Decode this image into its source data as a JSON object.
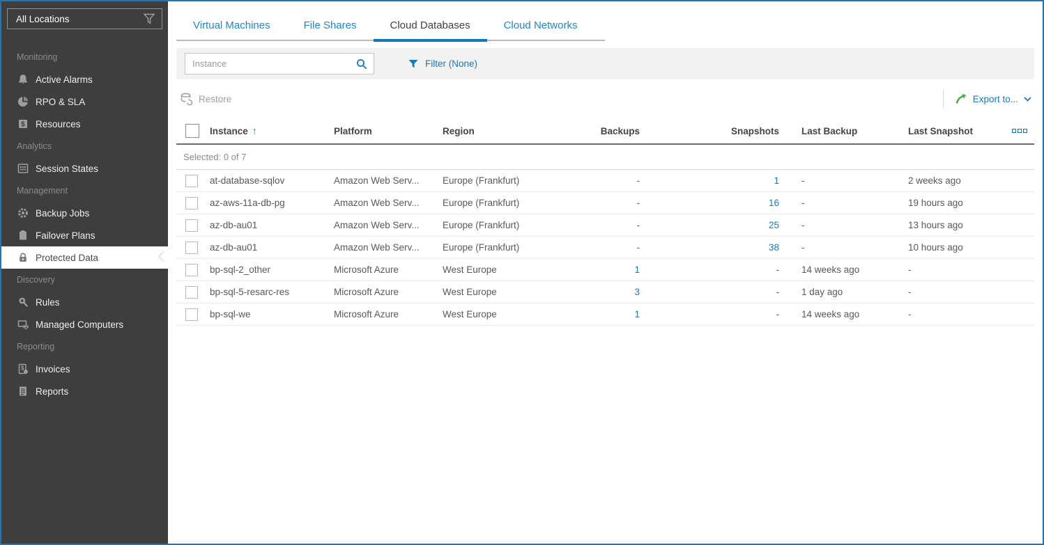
{
  "colors": {
    "accent_blue": "#1779bd",
    "active_tab_underline": "#0f76ba",
    "export_green": "#4caf50",
    "sidebar_bg": "#3e3e3e",
    "frame_border": "#2374b5"
  },
  "sidebar": {
    "location_filter": {
      "value": "All Locations",
      "icon": "funnel-icon"
    },
    "sections": [
      {
        "label": "Monitoring",
        "items": [
          {
            "label": "Active Alarms",
            "icon": "bell"
          },
          {
            "label": "RPO & SLA",
            "icon": "pie"
          },
          {
            "label": "Resources",
            "icon": "dollar"
          }
        ]
      },
      {
        "label": "Analytics",
        "items": [
          {
            "label": "Session States",
            "icon": "grid"
          }
        ]
      },
      {
        "label": "Management",
        "items": [
          {
            "label": "Backup Jobs",
            "icon": "gear"
          },
          {
            "label": "Failover Plans",
            "icon": "clipboard"
          },
          {
            "label": "Protected Data",
            "icon": "lock",
            "selected": true
          }
        ]
      },
      {
        "label": "Discovery",
        "items": [
          {
            "label": "Rules",
            "icon": "search-pin"
          },
          {
            "label": "Managed Computers",
            "icon": "computer-gear"
          }
        ]
      },
      {
        "label": "Reporting",
        "items": [
          {
            "label": "Invoices",
            "icon": "invoice"
          },
          {
            "label": "Reports",
            "icon": "report"
          }
        ]
      }
    ]
  },
  "tabs": [
    {
      "label": "Virtual Machines",
      "active": false
    },
    {
      "label": "File Shares",
      "active": false
    },
    {
      "label": "Cloud Databases",
      "active": true
    },
    {
      "label": "Cloud Networks",
      "active": false
    }
  ],
  "filter_bar": {
    "search_placeholder": "Instance",
    "search_icon": "magnifier-icon",
    "filter_label": "Filter (None)",
    "filter_icon": "funnel-icon"
  },
  "actions": {
    "restore_label": "Restore",
    "restore_icon": "database-restore-icon",
    "export_label": "Export to...",
    "export_icon": "export-arrow-icon"
  },
  "table": {
    "selected_summary": "Selected: 0 of 7",
    "columns": [
      "Instance",
      "Platform",
      "Region",
      "Backups",
      "Snapshots",
      "Last Backup",
      "Last Snapshot"
    ],
    "sort": {
      "column": "Instance",
      "direction": "asc",
      "glyph": "↑"
    },
    "rows": [
      {
        "instance": "at-database-sqlov",
        "platform": "Amazon Web Serv...",
        "region": "Europe (Frankfurt)",
        "backups": "-",
        "snapshots": "1",
        "last_backup": "-",
        "last_snapshot": "2 weeks ago"
      },
      {
        "instance": "az-aws-11a-db-pg",
        "platform": "Amazon Web Serv...",
        "region": "Europe (Frankfurt)",
        "backups": "-",
        "snapshots": "16",
        "last_backup": "-",
        "last_snapshot": "19 hours ago"
      },
      {
        "instance": "az-db-au01",
        "platform": "Amazon Web Serv...",
        "region": "Europe (Frankfurt)",
        "backups": "-",
        "snapshots": "25",
        "last_backup": "-",
        "last_snapshot": "13 hours ago"
      },
      {
        "instance": "az-db-au01",
        "platform": "Amazon Web Serv...",
        "region": "Europe (Frankfurt)",
        "backups": "-",
        "snapshots": "38",
        "last_backup": "-",
        "last_snapshot": "10 hours ago"
      },
      {
        "instance": "bp-sql-2_other",
        "platform": "Microsoft Azure",
        "region": "West Europe",
        "backups": "1",
        "snapshots": "-",
        "last_backup": "14 weeks ago",
        "last_snapshot": "-"
      },
      {
        "instance": "bp-sql-5-resarc-res",
        "platform": "Microsoft Azure",
        "region": "West Europe",
        "backups": "3",
        "snapshots": "-",
        "last_backup": "1 day ago",
        "last_snapshot": "-"
      },
      {
        "instance": "bp-sql-we",
        "platform": "Microsoft Azure",
        "region": "West Europe",
        "backups": "1",
        "snapshots": "-",
        "last_backup": "14 weeks ago",
        "last_snapshot": "-"
      }
    ]
  }
}
